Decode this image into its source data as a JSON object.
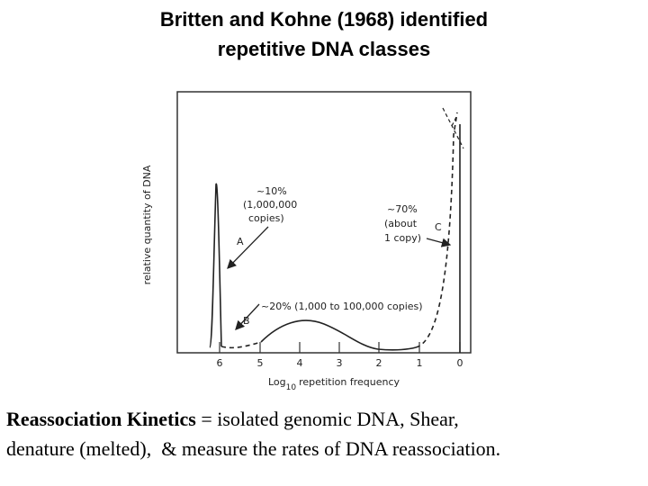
{
  "title": [
    "Britten and Kohne (1968) identified",
    "repetitive DNA classes"
  ],
  "figure": {
    "y_axis_label": "relative quantity of DNA",
    "x_ticks": [
      "6",
      "5",
      "4",
      "3",
      "2",
      "1",
      "0"
    ],
    "x_axis_label": {
      "base": "Log",
      "subscript": "10",
      "text": "repetition frequency"
    },
    "annotation_a": {
      "lines": [
        "~10%",
        "(1,000,000",
        "copies)"
      ],
      "letter": "A"
    },
    "annotation_b": {
      "text": "~20% (1,000 to 100,000 copies)",
      "letter": "B"
    },
    "annotation_c": {
      "lines": [
        "~70%",
        "(about",
        "1 copy)"
      ],
      "letter": "C"
    }
  },
  "caption": {
    "bold": "Reassociation Kinetics",
    "line1": " = isolated genomic DNA, Shear,",
    "line2": "denature (melted),  & measure the rates of DNA reassociation."
  }
}
